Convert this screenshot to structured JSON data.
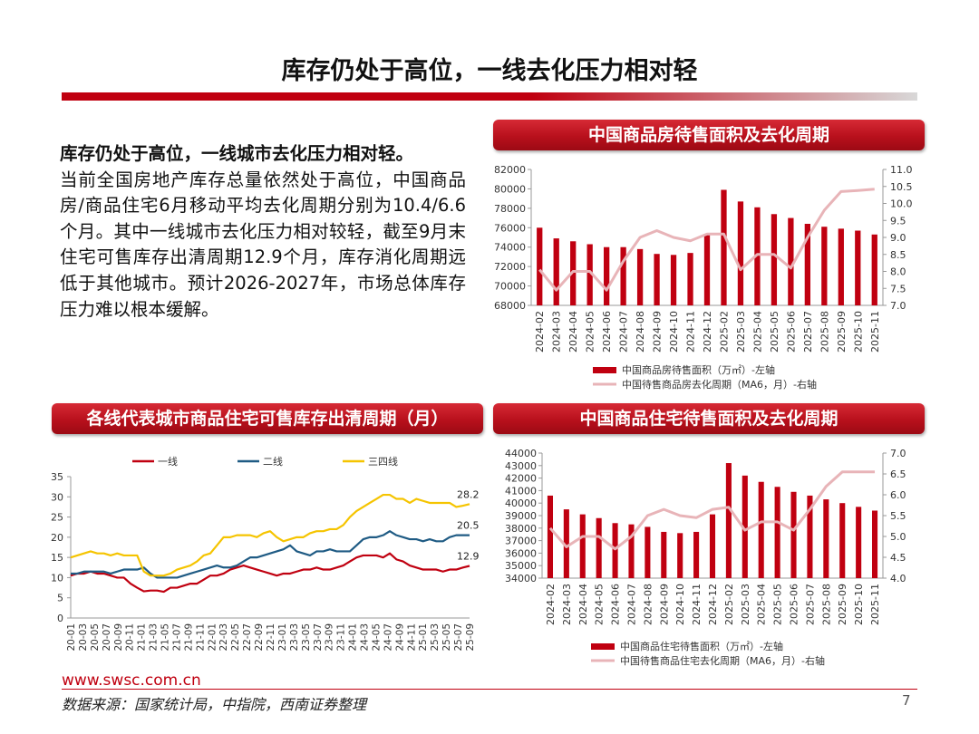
{
  "page": {
    "title": "库存仍处于高位，一线去化压力相对轻",
    "url": "www.swsc.com.cn",
    "source": "数据来源：国家统计局，中指院，西南证券整理",
    "page_number": "7"
  },
  "text": {
    "lead": "库存仍处于高位，一线城市去化压力相对轻。",
    "body": "当前全国房地产库存总量依然处于高位，中国商品房/商品住宅6月移动平均去化周期分别为10.4/6.6个月。其中一线城市去化压力相对较轻，截至9月末住宅可售库存出清周期12.9个月，库存消化周期远低于其他城市。预计2026-2027年，市场总体库存压力难以根本缓解。"
  },
  "colors": {
    "bar": "#c00010",
    "line_pink": "#e8b4b8",
    "tier1": "#c00010",
    "tier2": "#1f5b84",
    "tier34": "#f5c400"
  },
  "chart_data": [
    {
      "id": "commercial",
      "type": "bar",
      "title": "中国商品房待售面积及去化周期",
      "categories": [
        "2024-02",
        "2024-03",
        "2024-04",
        "2024-05",
        "2024-06",
        "2024-07",
        "2024-08",
        "2024-09",
        "2024-10",
        "2024-11",
        "2024-12",
        "2025-02",
        "2025-03",
        "2025-04",
        "2025-05",
        "2025-06",
        "2025-07",
        "2025-08",
        "2025-09",
        "2025-10",
        "2025-11"
      ],
      "series": [
        {
          "name": "中国商品房待售面积（万㎡）-左轴",
          "type": "bar",
          "axis": "left",
          "values": [
            76000,
            74900,
            74600,
            74300,
            74000,
            74000,
            73800,
            73300,
            73200,
            73400,
            75300,
            79900,
            78700,
            78100,
            77400,
            77000,
            76400,
            76100,
            75900,
            75700,
            75300
          ]
        },
        {
          "name": "中国待售商品房去化周期（MA6，月）-右轴",
          "type": "line",
          "axis": "right",
          "values": [
            8.05,
            7.45,
            8.0,
            8.0,
            7.45,
            8.3,
            9.0,
            9.2,
            9.0,
            8.9,
            9.1,
            9.1,
            8.05,
            8.5,
            8.5,
            8.1,
            9.0,
            9.8,
            10.35,
            10.38,
            10.42
          ]
        }
      ],
      "ylim_left": [
        68000,
        82000
      ],
      "yticks_left": [
        "82000",
        "80000",
        "78000",
        "76000",
        "74000",
        "72000",
        "70000",
        "68000"
      ],
      "ylim_right": [
        7.0,
        11.0
      ],
      "yticks_right": [
        "11.0",
        "10.5",
        "10.0",
        "9.5",
        "9.0",
        "8.5",
        "8.0",
        "7.5",
        "7.0"
      ]
    },
    {
      "id": "cities",
      "type": "line",
      "title": "各线代表城市商品住宅可售库存出清周期（月）",
      "x_ticks": [
        "20-01",
        "20-03",
        "20-05",
        "20-07",
        "20-09",
        "20-11",
        "21-01",
        "21-03",
        "21-05",
        "21-07",
        "21-09",
        "21-11",
        "22-01",
        "22-03",
        "22-05",
        "22-07",
        "22-09",
        "22-11",
        "23-01",
        "23-03",
        "23-05",
        "23-07",
        "23-09",
        "23-11",
        "24-01",
        "24-03",
        "24-05",
        "24-07",
        "24-09",
        "24-11",
        "25-01",
        "25-03",
        "25-05",
        "25-07",
        "25-09"
      ],
      "ylim": [
        0,
        35
      ],
      "yticks": [
        "35",
        "30",
        "25",
        "20",
        "15",
        "10",
        "5",
        "0"
      ],
      "series": [
        {
          "name": "一线",
          "end_label": "12.9",
          "values": [
            10.5,
            11,
            11,
            11.5,
            11,
            11,
            10.5,
            10,
            10,
            8.5,
            7.5,
            6.6,
            6.8,
            6.8,
            6.5,
            7.5,
            7.5,
            8,
            8.5,
            8.5,
            9.5,
            10.5,
            10.5,
            11,
            12,
            12.5,
            13,
            12.5,
            12,
            11.5,
            11,
            10.5,
            11,
            11,
            11.5,
            12,
            12,
            12.5,
            12,
            12,
            12.5,
            13,
            14,
            15,
            15.5,
            15.5,
            15.5,
            15,
            16,
            14.5,
            14,
            13,
            12.5,
            12,
            12,
            12,
            11.5,
            12,
            12,
            12.5,
            12.9
          ]
        },
        {
          "name": "二线",
          "end_label": "20.5",
          "values": [
            11,
            11,
            11.5,
            11.5,
            11.5,
            11.5,
            11,
            11.5,
            12,
            12,
            12,
            12.5,
            11,
            10,
            10,
            10,
            10,
            10.5,
            11,
            11.5,
            12,
            12.5,
            13,
            12.5,
            12.5,
            13,
            14,
            15,
            15,
            15.5,
            16,
            16.5,
            17,
            18,
            16.5,
            16,
            15.5,
            16.5,
            16.5,
            17,
            16.5,
            16.5,
            16.5,
            18,
            19.5,
            20,
            20,
            20.5,
            21.5,
            20.5,
            20,
            19.5,
            19.5,
            19,
            19.5,
            19,
            19,
            20,
            20.5,
            20.5,
            20.5
          ]
        },
        {
          "name": "三四线",
          "end_label": "28.2",
          "values": [
            15,
            15.5,
            16,
            16.5,
            16,
            16,
            15.5,
            16,
            15.5,
            15.5,
            15.5,
            11.5,
            10.5,
            10.5,
            10.5,
            11,
            12,
            12.5,
            13,
            14,
            15.5,
            16,
            18,
            20,
            20,
            20.5,
            20.5,
            20.5,
            20,
            21,
            21.5,
            20,
            19,
            19.5,
            20,
            20,
            21,
            21.5,
            21.5,
            22,
            22,
            23,
            25,
            26.5,
            27.5,
            28.5,
            29.5,
            30.5,
            30.5,
            29.5,
            29.5,
            28.5,
            29.5,
            29,
            28.5,
            28.5,
            28.5,
            28.5,
            27.5,
            27.8,
            28.2
          ]
        }
      ]
    },
    {
      "id": "residential",
      "type": "bar",
      "title": "中国商品住宅待售面积及去化周期",
      "categories": [
        "2024-02",
        "2024-03",
        "2024-04",
        "2024-05",
        "2024-06",
        "2024-07",
        "2024-08",
        "2024-09",
        "2024-10",
        "2024-11",
        "2024-12",
        "2025-02",
        "2025-03",
        "2025-04",
        "2025-05",
        "2025-06",
        "2025-07",
        "2025-08",
        "2025-09",
        "2025-10",
        "2025-11"
      ],
      "series": [
        {
          "name": "中国商品住宅待售面积（万㎡）-左轴",
          "type": "bar",
          "axis": "left",
          "values": [
            40600,
            39500,
            39100,
            38800,
            38400,
            38300,
            38100,
            37700,
            37600,
            37700,
            39100,
            43200,
            42200,
            41700,
            41300,
            40900,
            40600,
            40300,
            40000,
            39700,
            39400
          ]
        },
        {
          "name": "中国待售商品住宅去化周期（MA6，月）-右轴",
          "type": "line",
          "axis": "right",
          "values": [
            5.2,
            4.75,
            5.0,
            5.0,
            4.7,
            5.0,
            5.5,
            5.65,
            5.5,
            5.45,
            5.65,
            5.7,
            5.15,
            5.35,
            5.35,
            5.15,
            5.65,
            6.2,
            6.55,
            6.55,
            6.55
          ]
        }
      ],
      "ylim_left": [
        34000,
        44000
      ],
      "yticks_left": [
        "44000",
        "43000",
        "42000",
        "41000",
        "40000",
        "39000",
        "38000",
        "37000",
        "36000",
        "35000",
        "34000"
      ],
      "ylim_right": [
        4.0,
        7.0
      ],
      "yticks_right": [
        "7.0",
        "6.5",
        "6.0",
        "5.5",
        "5.0",
        "4.5",
        "4.0"
      ]
    }
  ]
}
